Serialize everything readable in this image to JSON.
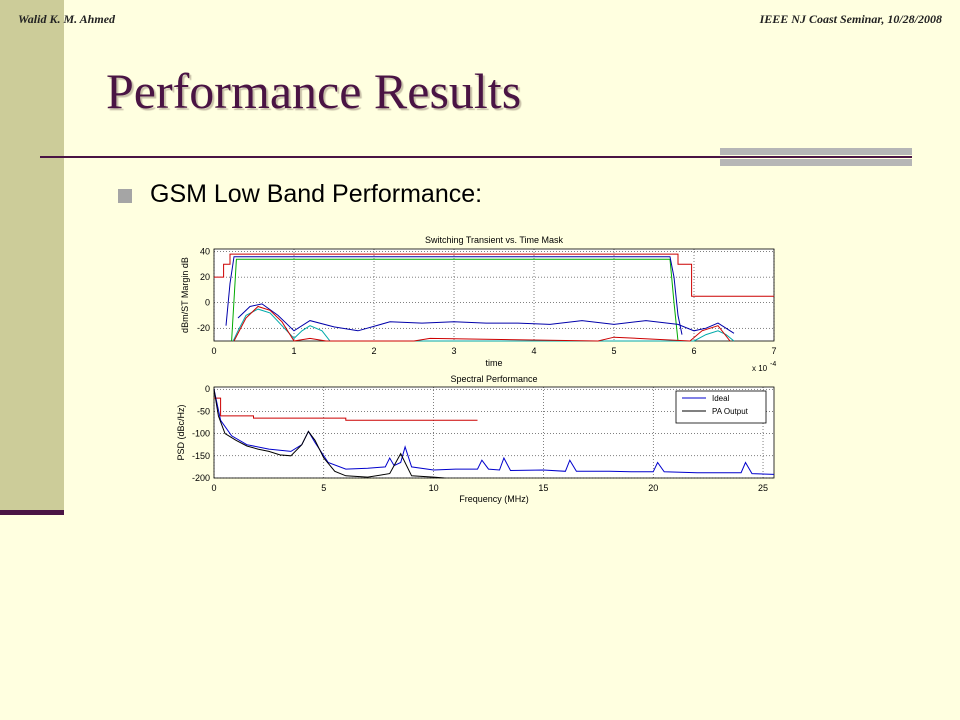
{
  "header": {
    "author": "Walid K. M. Ahmed",
    "event": "IEEE NJ Coast Seminar, 10/28/2008"
  },
  "slide": {
    "title": "Performance Results",
    "bullet": "GSM Low Band Performance:"
  },
  "colors": {
    "title": "#4a1444",
    "background": "#ffffe0",
    "sidebar": "#cccc99"
  },
  "chart_data": [
    {
      "type": "line",
      "title": "Switching Transient vs. Time Mask",
      "xlabel": "time",
      "ylabel": "dBm/ST Margin dB",
      "exponent_label": "x 10",
      "exponent_power": "-4",
      "xlim": [
        0,
        7
      ],
      "ylim": [
        -30,
        42
      ],
      "xticks": [
        "0",
        "1",
        "2",
        "3",
        "4",
        "5",
        "6",
        "7"
      ],
      "yticks": [
        "40",
        "20",
        "0",
        "-20"
      ],
      "xtick_values": [
        0,
        1,
        2,
        3,
        4,
        5,
        6,
        7
      ],
      "ytick_values": [
        40,
        20,
        0,
        -20
      ],
      "grid": true,
      "series": [
        {
          "color": "#cc0000",
          "x": [
            0,
            0.12,
            0.12,
            0.2,
            0.2,
            5.8,
            5.8,
            5.97,
            5.97,
            7
          ],
          "y": [
            20,
            20,
            30,
            30,
            38,
            38,
            30,
            30,
            5,
            5
          ]
        },
        {
          "color": "#00aa00",
          "x": [
            0.22,
            0.28,
            5.7,
            5.75,
            5.8
          ],
          "y": [
            -30,
            34,
            34,
            0,
            -30
          ]
        },
        {
          "color": "#0000aa",
          "x": [
            0.15,
            0.2,
            0.25,
            1.0,
            2.0,
            3.0,
            4.0,
            5.0,
            5.7,
            5.75,
            5.8,
            5.85
          ],
          "y": [
            -18,
            15,
            36,
            36,
            36,
            36,
            36,
            36,
            36,
            20,
            -10,
            -25
          ]
        },
        {
          "color": "#00aaaa",
          "x": [
            0.24,
            0.3,
            0.4,
            0.55,
            0.7,
            0.85,
            1.0,
            1.1,
            1.2,
            1.35,
            1.45,
            6.0,
            6.15,
            6.3,
            6.4,
            6.5
          ],
          "y": [
            -30,
            -22,
            -10,
            -5,
            -8,
            -18,
            -28,
            -22,
            -18,
            -22,
            -30,
            -30,
            -25,
            -22,
            -25,
            -30
          ]
        },
        {
          "color": "#0000aa",
          "x": [
            0.3,
            0.45,
            0.6,
            0.8,
            1.0,
            1.2,
            1.5,
            1.8,
            2.2,
            2.6,
            3.0,
            3.4,
            3.8,
            4.2,
            4.6,
            5.0,
            5.4,
            5.8,
            6.0,
            6.15,
            6.3,
            6.5
          ],
          "y": [
            -12,
            -3,
            -1,
            -10,
            -22,
            -14,
            -19,
            -22,
            -15,
            -16,
            -15,
            -16,
            -16,
            -17,
            -14,
            -17,
            -14,
            -17,
            -22,
            -20,
            -16,
            -24
          ]
        },
        {
          "color": "#cc0000",
          "x": [
            0.25,
            0.4,
            0.55,
            0.7,
            0.85,
            1.0,
            1.2,
            1.4,
            2.5,
            2.7,
            4.8,
            5.0,
            5.95,
            6.1,
            6.3,
            6.45
          ],
          "y": [
            -30,
            -12,
            -3,
            -6,
            -15,
            -30,
            -28,
            -30,
            -30,
            -28,
            -30,
            -27,
            -30,
            -22,
            -18,
            -30
          ]
        }
      ]
    },
    {
      "type": "line",
      "title": "Spectral Performance",
      "xlabel": "Frequency (MHz)",
      "ylabel": "PSD (dBc/Hz)",
      "xlim": [
        0,
        25.5
      ],
      "ylim": [
        -200,
        5
      ],
      "xticks": [
        "0",
        "5",
        "10",
        "15",
        "20",
        "25"
      ],
      "yticks": [
        "0",
        "-50",
        "-100",
        "-150",
        "-200"
      ],
      "xtick_values": [
        0,
        5,
        10,
        15,
        20,
        25
      ],
      "ytick_values": [
        0,
        -50,
        -100,
        -150,
        -200
      ],
      "grid": true,
      "legend": {
        "position": "top-right",
        "entries": [
          {
            "label": "Ideal",
            "color": "#0000cc"
          },
          {
            "label": "PA Output",
            "color": "#000000"
          }
        ]
      },
      "series": [
        {
          "color": "#cc0000",
          "x": [
            0,
            0.3,
            0.3,
            1.8,
            1.8,
            6.0,
            6.0,
            12.0
          ],
          "y": [
            -20,
            -20,
            -60,
            -60,
            -65,
            -65,
            -70,
            -70
          ]
        },
        {
          "label": "Ideal",
          "color": "#0000cc",
          "x": [
            0,
            0.3,
            0.8,
            1.5,
            2.5,
            3.5,
            4.0,
            4.3,
            4.6,
            5.2,
            6.0,
            7.0,
            7.8,
            8.0,
            8.2,
            8.5,
            8.7,
            9.0,
            10.0,
            11.0,
            12.0,
            12.2,
            12.5,
            13.0,
            13.2,
            13.5,
            15.0,
            16.0,
            16.2,
            16.5,
            18.0,
            19.0,
            20.0,
            20.2,
            20.5,
            22.0,
            24.0,
            24.2,
            24.5,
            25.5
          ],
          "y": [
            0,
            -70,
            -105,
            -125,
            -135,
            -140,
            -125,
            -95,
            -120,
            -165,
            -180,
            -178,
            -175,
            -155,
            -172,
            -165,
            -130,
            -175,
            -182,
            -180,
            -180,
            -160,
            -180,
            -182,
            -155,
            -183,
            -182,
            -185,
            -160,
            -185,
            -185,
            -186,
            -186,
            -165,
            -186,
            -188,
            -188,
            -165,
            -190,
            -192
          ]
        },
        {
          "label": "PA Output",
          "color": "#000000",
          "x": [
            0,
            0.2,
            0.5,
            1.0,
            1.5,
            2.0,
            2.5,
            3.0,
            3.5,
            4.0,
            4.3,
            4.6,
            5.0,
            5.5,
            6.0,
            7.0,
            8.0,
            8.5,
            9.0,
            10.0,
            10.5
          ],
          "y": [
            0,
            -60,
            -100,
            -115,
            -128,
            -135,
            -140,
            -148,
            -150,
            -125,
            -95,
            -115,
            -155,
            -185,
            -195,
            -198,
            -190,
            -145,
            -195,
            -198,
            -200
          ]
        }
      ]
    }
  ]
}
